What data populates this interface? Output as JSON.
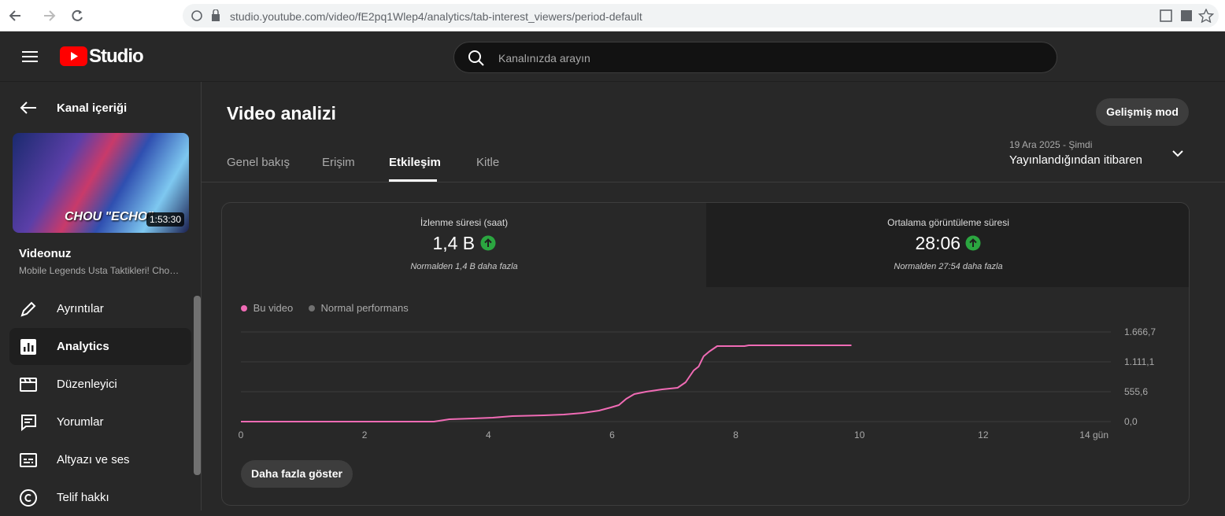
{
  "browser": {
    "url": "studio.youtube.com/video/fE2pq1Wlep4/analytics/tab-interest_viewers/period-default"
  },
  "header": {
    "logo": "Studio",
    "search_placeholder": "Kanalınızda arayın"
  },
  "sidebar": {
    "back": "Kanal içeriği",
    "thumbnail": {
      "caption": "CHOU \"ECHO\"",
      "duration": "1:53:30"
    },
    "video_label": "Videonuz",
    "video_title": "Mobile Legends Usta Taktikleri! Cho…",
    "menu": [
      "Ayrıntılar",
      "Analytics",
      "Düzenleyici",
      "Yorumlar",
      "Altyazı ve ses",
      "Telif hakkı"
    ]
  },
  "main": {
    "title": "Video analizi",
    "advanced_button": "Gelişmiş mod",
    "tabs": [
      "Genel bakış",
      "Erişim",
      "Etkileşim",
      "Kitle"
    ],
    "date_range": {
      "dates": "19 Ara 2025 - Şimdi",
      "label": "Yayınlandığından itibaren"
    },
    "metrics": [
      {
        "label": "İzlenme süresi (saat)",
        "value": "1,4 B",
        "note": "Normalden 1,4 B daha fazla"
      },
      {
        "label": "Ortalama görüntüleme süresi",
        "value": "28:06",
        "note": "Normalden 27:54 daha fazla"
      }
    ],
    "more_button": "Daha fazla göster"
  },
  "chart_data": {
    "type": "line",
    "x": [
      0,
      3.12,
      3.37,
      3.75,
      4.07,
      4.39,
      4.9,
      5.22,
      5.53,
      5.79,
      5.98,
      6.11,
      6.23,
      6.36,
      6.55,
      6.81,
      7.06,
      7.19,
      7.32,
      7.4,
      7.48,
      7.57,
      7.7,
      8.14,
      8.21,
      9.87
    ],
    "series": [
      {
        "name": "Bu video",
        "color": "#f06bb5",
        "values": [
          0,
          0,
          44,
          58,
          73,
          102,
          117,
          132,
          161,
          205,
          263,
          307,
          424,
          512,
          556,
          599,
          629,
          731,
          950,
          1023,
          1213,
          1301,
          1404,
          1404,
          1418,
          1418
        ]
      },
      {
        "name": "Normal performans",
        "color": "#717171",
        "values": [
          null,
          null,
          null,
          null,
          null,
          null,
          null,
          null,
          null,
          null,
          null,
          null,
          null,
          null,
          null,
          null,
          null,
          null,
          null,
          null,
          null,
          null,
          null,
          null,
          null,
          null
        ]
      }
    ],
    "xlim": [
      0,
      14
    ],
    "xticks": [
      0,
      2,
      4,
      6,
      8,
      10,
      12,
      {
        "value": 14,
        "label": "14 gün"
      }
    ],
    "ylim": [
      0,
      1666.7
    ],
    "yticks": [
      {
        "value": 0,
        "label": "0,0"
      },
      {
        "value": 555.6,
        "label": "555,6"
      },
      {
        "value": 1111.1,
        "label": "1.111,1"
      },
      {
        "value": 1666.7,
        "label": "1.666,7"
      }
    ],
    "grid": true
  }
}
